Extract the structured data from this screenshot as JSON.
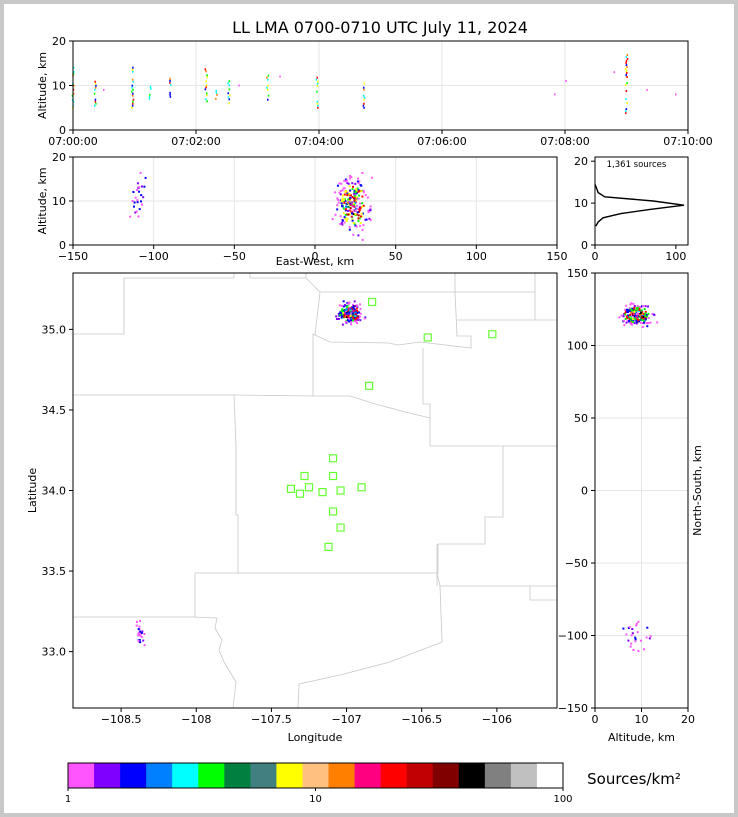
{
  "title": "LL LMA 0700-0710 UTC July 11, 2024",
  "chart_data": [
    {
      "id": "time_height",
      "type": "scatter",
      "ylabel": "Altitude, km",
      "xlim": [
        "07:00:00",
        "07:10:00"
      ],
      "ylim": [
        0,
        20
      ],
      "x_ticks": [
        "07:00:00",
        "07:02:00",
        "07:04:00",
        "07:06:00",
        "07:08:00",
        "07:10:00"
      ],
      "y_ticks": [
        0,
        10,
        20
      ],
      "grid": true,
      "columns": [
        {
          "t": "07:00:00",
          "lo": 5,
          "hi": 14
        },
        {
          "t": "07:00:22",
          "lo": 5,
          "hi": 11
        },
        {
          "t": "07:00:58",
          "lo": 5,
          "hi": 14
        },
        {
          "t": "07:01:15",
          "lo": 7,
          "hi": 10
        },
        {
          "t": "07:01:35",
          "lo": 7,
          "hi": 12
        },
        {
          "t": "07:02:10",
          "lo": 6,
          "hi": 14
        },
        {
          "t": "07:02:20",
          "lo": 7,
          "hi": 9
        },
        {
          "t": "07:02:32",
          "lo": 6,
          "hi": 11
        },
        {
          "t": "07:03:10",
          "lo": 5,
          "hi": 13
        },
        {
          "t": "07:03:58",
          "lo": 5,
          "hi": 12
        },
        {
          "t": "07:04:44",
          "lo": 5,
          "hi": 12
        },
        {
          "t": "07:09:00",
          "lo": 2,
          "hi": 17
        }
      ],
      "sparse": [
        {
          "t": "07:00:30",
          "alt": 9
        },
        {
          "t": "07:02:42",
          "alt": 10
        },
        {
          "t": "07:03:22",
          "alt": 12
        },
        {
          "t": "07:07:50",
          "alt": 8
        },
        {
          "t": "07:08:01",
          "alt": 11
        },
        {
          "t": "07:08:48",
          "alt": 13
        },
        {
          "t": "07:09:20",
          "alt": 9
        },
        {
          "t": "07:09:48",
          "alt": 8
        }
      ]
    },
    {
      "id": "east_west_altitude",
      "type": "scatter",
      "xlabel": "East-West, km",
      "ylabel": "Altitude, km",
      "xlim": [
        -150,
        150
      ],
      "ylim": [
        0,
        20
      ],
      "x_ticks": [
        -150,
        -100,
        -50,
        0,
        50,
        100,
        150
      ],
      "y_ticks": [
        0,
        10,
        20
      ],
      "grid": true,
      "clusters": [
        {
          "x": 24,
          "alt": 9,
          "dx": 5,
          "dalt": 3,
          "n": 220,
          "hot": true
        },
        {
          "x": -110,
          "alt": 10,
          "dx": 3,
          "dalt": 2.5,
          "n": 25,
          "hot": false
        }
      ]
    },
    {
      "id": "altitude_histogram",
      "type": "line",
      "annotation": "1,361 sources",
      "xlim": [
        0,
        115
      ],
      "ylim": [
        0,
        21
      ],
      "x_ticks": [
        0,
        100
      ],
      "y_ticks": [
        0,
        10,
        20
      ],
      "profile": [
        {
          "alt": 4.5,
          "count": 1
        },
        {
          "alt": 5.5,
          "count": 4
        },
        {
          "alt": 6.5,
          "count": 10
        },
        {
          "alt": 7.5,
          "count": 32
        },
        {
          "alt": 8.5,
          "count": 68
        },
        {
          "alt": 9.5,
          "count": 110
        },
        {
          "alt": 10.5,
          "count": 72
        },
        {
          "alt": 11.5,
          "count": 12
        },
        {
          "alt": 12.5,
          "count": 4
        },
        {
          "alt": 13.5,
          "count": 2
        },
        {
          "alt": 14.5,
          "count": 0
        }
      ]
    },
    {
      "id": "plan_view",
      "type": "scatter",
      "xlabel": "Longitude",
      "ylabel": "Latitude",
      "xlim": [
        -108.82,
        -105.6
      ],
      "ylim": [
        32.65,
        35.35
      ],
      "x_ticks": [
        -108.5,
        -108.0,
        -107.5,
        -107.0,
        -106.5,
        -106.0
      ],
      "y_ticks": [
        33.0,
        33.5,
        34.0,
        34.5,
        35.0
      ],
      "clusters": [
        {
          "lon": -106.98,
          "lat": 35.1,
          "dlon": 0.06,
          "dlat": 0.05,
          "n": 220,
          "hot": true
        },
        {
          "lon": -108.37,
          "lat": 33.1,
          "dlon": 0.02,
          "dlat": 0.09,
          "n": 25,
          "hot": false
        }
      ],
      "stations": [
        {
          "lon": -106.83,
          "lat": 35.17
        },
        {
          "lon": -106.46,
          "lat": 34.95
        },
        {
          "lon": -106.03,
          "lat": 34.97
        },
        {
          "lon": -106.85,
          "lat": 34.65
        },
        {
          "lon": -107.09,
          "lat": 34.2
        },
        {
          "lon": -107.28,
          "lat": 34.09
        },
        {
          "lon": -107.09,
          "lat": 34.09
        },
        {
          "lon": -107.37,
          "lat": 34.01
        },
        {
          "lon": -107.31,
          "lat": 33.98
        },
        {
          "lon": -107.25,
          "lat": 34.02
        },
        {
          "lon": -107.16,
          "lat": 33.99
        },
        {
          "lon": -107.04,
          "lat": 34.0
        },
        {
          "lon": -106.9,
          "lat": 34.02
        },
        {
          "lon": -107.09,
          "lat": 33.87
        },
        {
          "lon": -107.04,
          "lat": 33.77
        },
        {
          "lon": -107.12,
          "lat": 33.65
        }
      ]
    },
    {
      "id": "north_south_altitude",
      "type": "scatter",
      "xlabel": "Altitude, km",
      "ylabel": "North-South, km",
      "xlim": [
        0,
        20
      ],
      "ylim": [
        -150,
        150
      ],
      "x_ticks": [
        0,
        10,
        20
      ],
      "y_ticks": [
        -150,
        -100,
        -50,
        0,
        50,
        100,
        150
      ],
      "grid": true,
      "clusters": [
        {
          "alt": 9,
          "y": 121,
          "dalt": 2.5,
          "dy": 5,
          "n": 220,
          "hot": true
        },
        {
          "alt": 9,
          "y": -100,
          "dalt": 2.5,
          "dy": 10,
          "n": 25,
          "hot": false
        }
      ]
    },
    {
      "id": "colorbar",
      "type": "heatmap",
      "label": "Sources/km²",
      "scale": "log",
      "range": [
        1,
        100
      ],
      "ticks": [
        1,
        10,
        100
      ],
      "colors": [
        "#ff55ff",
        "#8000ff",
        "#0000ff",
        "#0080ff",
        "#00ffff",
        "#00ff00",
        "#008040",
        "#408080",
        "#ffff00",
        "#ffc080",
        "#ff8000",
        "#ff0080",
        "#ff0000",
        "#c00000",
        "#800000",
        "#000000",
        "#808080",
        "#c0c0c0",
        "#ffffff"
      ]
    }
  ]
}
